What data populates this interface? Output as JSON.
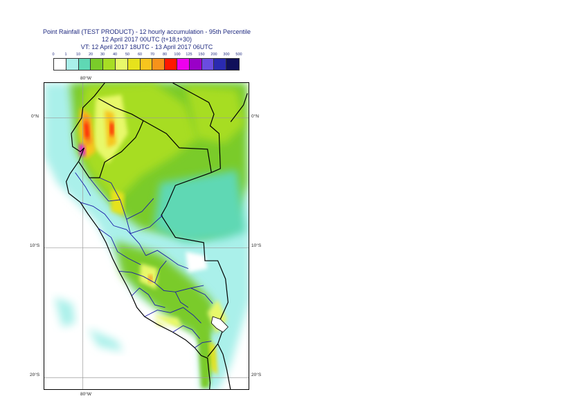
{
  "title": {
    "line1": "Point Rainfall (TEST PRODUCT) - 12 hourly accumulation - 95th Percentile",
    "line2": "12 April 2017 00UTC (t+18,t+30)",
    "line3": "VT: 12 April 2017 18UTC - 13 April 2017 06UTC"
  },
  "legend": {
    "ticks": [
      "0",
      "1",
      "10",
      "20",
      "30",
      "40",
      "50",
      "60",
      "70",
      "80",
      "100",
      "125",
      "150",
      "200",
      "300",
      "500"
    ],
    "colors": [
      "#ffffff",
      "#aaf0ea",
      "#5fd8b4",
      "#7acb2a",
      "#a7dd24",
      "#e8f86a",
      "#e6e21c",
      "#f7c51e",
      "#f7921a",
      "#ff1800",
      "#ee00ee",
      "#9a00c8",
      "#6a4ce0",
      "#2a2ab0",
      "#10105a"
    ]
  },
  "map": {
    "lat_labels": [
      "0°N",
      "10°S",
      "20°S"
    ],
    "lon_labels": [
      "80°W"
    ],
    "lon_min": -83,
    "lon_max": -67,
    "lat_max": 2.7,
    "lat_min": -21.0
  }
}
